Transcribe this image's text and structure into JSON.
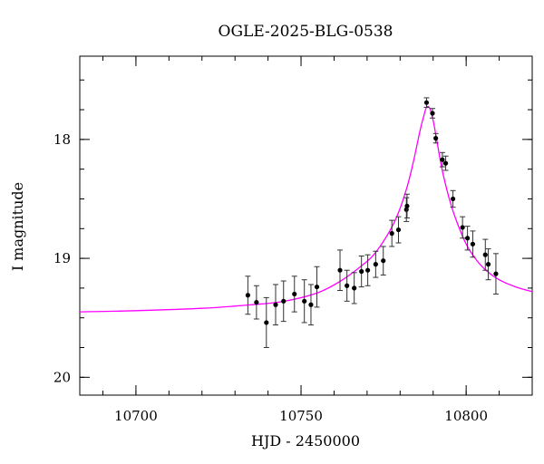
{
  "chart_data": {
    "type": "scatter",
    "title": "OGLE-2025-BLG-0538",
    "xlabel": "HJD - 2450000",
    "ylabel": "I magnitude",
    "xlim": [
      10683,
      10820
    ],
    "ylim": [
      20.15,
      17.3
    ],
    "y_inverted": true,
    "grid": false,
    "legend": "none",
    "x_major_ticks": [
      10700,
      10750,
      10800
    ],
    "x_major_tick_labels": [
      "10700",
      "10750",
      "10800"
    ],
    "x_minor_step": 10,
    "y_major_ticks": [
      18,
      19,
      20
    ],
    "y_major_tick_labels": [
      "18",
      "19",
      "20"
    ],
    "y_minor_step": 0.25,
    "series": [
      {
        "kind": "points_with_errorbars",
        "color": "#000000",
        "points": [
          {
            "x": 10733.9,
            "y": 19.31,
            "err": 0.16
          },
          {
            "x": 10736.5,
            "y": 19.37,
            "err": 0.14
          },
          {
            "x": 10739.5,
            "y": 19.54,
            "err": 0.21
          },
          {
            "x": 10742.3,
            "y": 19.39,
            "err": 0.17
          },
          {
            "x": 10744.7,
            "y": 19.36,
            "err": 0.17
          },
          {
            "x": 10748.0,
            "y": 19.3,
            "err": 0.15
          },
          {
            "x": 10751.0,
            "y": 19.36,
            "err": 0.18
          },
          {
            "x": 10753.0,
            "y": 19.39,
            "err": 0.17
          },
          {
            "x": 10754.8,
            "y": 19.24,
            "err": 0.17
          },
          {
            "x": 10761.8,
            "y": 19.1,
            "err": 0.17
          },
          {
            "x": 10763.9,
            "y": 19.23,
            "err": 0.13
          },
          {
            "x": 10766.1,
            "y": 19.25,
            "err": 0.13
          },
          {
            "x": 10768.3,
            "y": 19.11,
            "err": 0.13
          },
          {
            "x": 10770.2,
            "y": 19.1,
            "err": 0.13
          },
          {
            "x": 10772.6,
            "y": 19.05,
            "err": 0.11
          },
          {
            "x": 10774.9,
            "y": 19.02,
            "err": 0.12
          },
          {
            "x": 10777.5,
            "y": 18.79,
            "err": 0.11
          },
          {
            "x": 10779.5,
            "y": 18.76,
            "err": 0.11
          },
          {
            "x": 10781.9,
            "y": 18.59,
            "err": 0.1
          },
          {
            "x": 10782.1,
            "y": 18.56,
            "err": 0.1
          },
          {
            "x": 10788.0,
            "y": 17.69,
            "err": 0.04
          },
          {
            "x": 10789.8,
            "y": 17.78,
            "err": 0.04
          },
          {
            "x": 10790.8,
            "y": 17.99,
            "err": 0.04
          },
          {
            "x": 10792.8,
            "y": 18.17,
            "err": 0.06
          },
          {
            "x": 10793.8,
            "y": 18.2,
            "err": 0.06
          },
          {
            "x": 10796.0,
            "y": 18.5,
            "err": 0.07
          },
          {
            "x": 10798.9,
            "y": 18.74,
            "err": 0.09
          },
          {
            "x": 10800.4,
            "y": 18.83,
            "err": 0.1
          },
          {
            "x": 10802.0,
            "y": 18.88,
            "err": 0.11
          },
          {
            "x": 10805.8,
            "y": 18.97,
            "err": 0.13
          },
          {
            "x": 10806.7,
            "y": 19.05,
            "err": 0.13
          },
          {
            "x": 10809.0,
            "y": 19.13,
            "err": 0.17
          }
        ]
      },
      {
        "kind": "model_curve",
        "color": "#ff00ff",
        "x": [
          10683,
          10700,
          10720,
          10735,
          10745,
          10755,
          10762,
          10768,
          10772,
          10776,
          10779,
          10782,
          10784,
          10786,
          10787,
          10788,
          10789,
          10790,
          10791,
          10792,
          10793,
          10795,
          10797,
          10800,
          10803,
          10806,
          10810,
          10815,
          10820
        ],
        "y": [
          19.45,
          19.44,
          19.42,
          19.39,
          19.36,
          19.29,
          19.19,
          19.07,
          18.97,
          18.81,
          18.65,
          18.41,
          18.19,
          17.93,
          17.82,
          17.73,
          17.74,
          17.84,
          17.99,
          18.15,
          18.29,
          18.51,
          18.68,
          18.88,
          19.01,
          19.1,
          19.18,
          19.24,
          19.28
        ]
      }
    ]
  }
}
